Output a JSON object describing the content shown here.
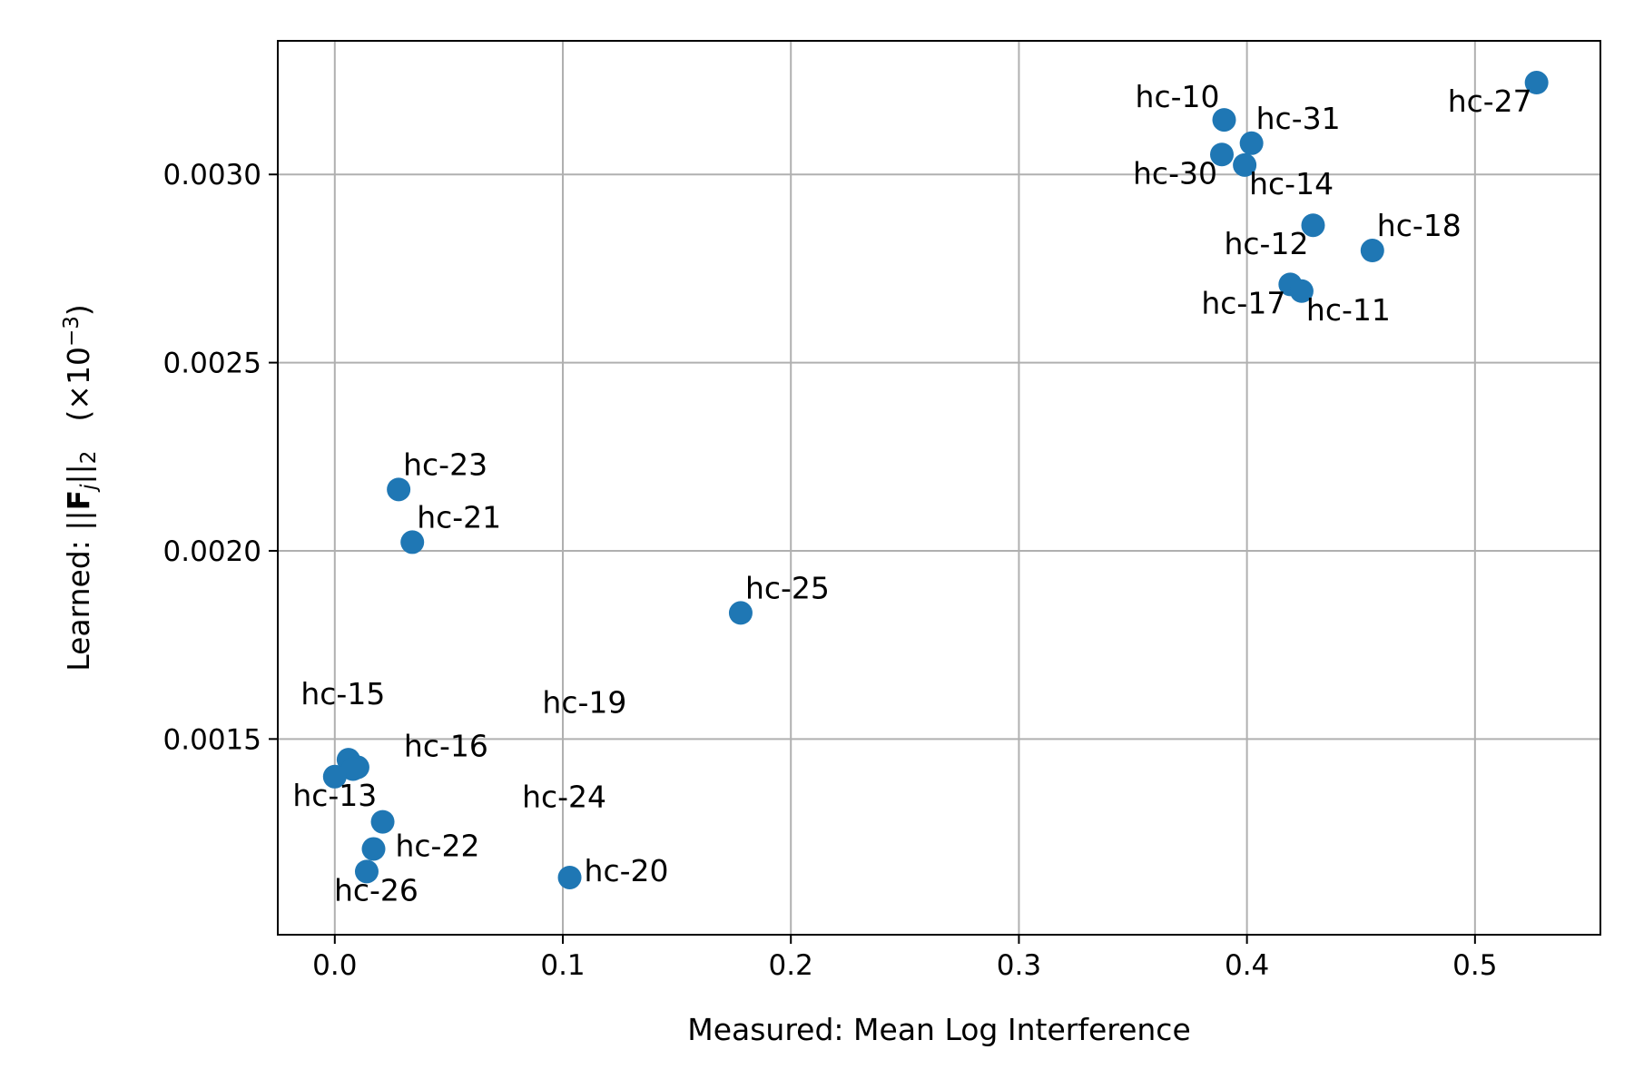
{
  "chart_data": {
    "type": "scatter",
    "title": "",
    "xlabel": "Measured: Mean Log Interference",
    "ylabel": {
      "prefix": "Learned: ||",
      "bold": "F",
      "sub_j": "j",
      "mid": "||",
      "sub_2": "2",
      "scale_open": "(×10",
      "scale_exp": "−3",
      "scale_close": ")"
    },
    "xlim": [
      -0.025,
      0.555
    ],
    "ylim": [
      0.00098,
      0.003355
    ],
    "xticks": [
      0.0,
      0.1,
      0.2,
      0.3,
      0.4,
      0.5
    ],
    "xtick_labels": [
      "0.0",
      "0.1",
      "0.2",
      "0.3",
      "0.4",
      "0.5"
    ],
    "yticks": [
      0.0015,
      0.002,
      0.0025,
      0.003
    ],
    "ytick_labels": [
      "0.0015",
      "0.0020",
      "0.0025",
      "0.0030"
    ],
    "grid": true,
    "legend": false,
    "marker_color": "#1f77b4",
    "points": [
      {
        "label": "hc-10",
        "x": 0.39,
        "y": 0.003145
      },
      {
        "label": "hc-31",
        "x": 0.402,
        "y": 0.003083
      },
      {
        "label": "hc-30",
        "x": 0.389,
        "y": 0.003053
      },
      {
        "label": "hc-14",
        "x": 0.399,
        "y": 0.003025
      },
      {
        "label": "hc-27",
        "x": 0.527,
        "y": 0.003244
      },
      {
        "label": "hc-12",
        "x": 0.429,
        "y": 0.002865
      },
      {
        "label": "hc-18",
        "x": 0.455,
        "y": 0.002798
      },
      {
        "label": "hc-17",
        "x": 0.419,
        "y": 0.002708
      },
      {
        "label": "hc-11",
        "x": 0.424,
        "y": 0.00269
      },
      {
        "label": "hc-23",
        "x": 0.028,
        "y": 0.002163
      },
      {
        "label": "hc-21",
        "x": 0.034,
        "y": 0.002023
      },
      {
        "label": "hc-25",
        "x": 0.178,
        "y": 0.001835
      },
      {
        "label": "hc-15",
        "x": 0.006,
        "y": 0.001445
      },
      {
        "label": "hc-16",
        "x": 0.01,
        "y": 0.001425
      },
      {
        "label": "hc-19",
        "x": 0.008,
        "y": 0.00142
      },
      {
        "label": "hc-13",
        "x": 0.0,
        "y": 0.0014
      },
      {
        "label": "hc-24",
        "x": 0.021,
        "y": 0.00128
      },
      {
        "label": "hc-22",
        "x": 0.017,
        "y": 0.001208
      },
      {
        "label": "hc-26",
        "x": 0.014,
        "y": 0.001148
      },
      {
        "label": "hc-20",
        "x": 0.103,
        "y": 0.001132
      }
    ]
  }
}
